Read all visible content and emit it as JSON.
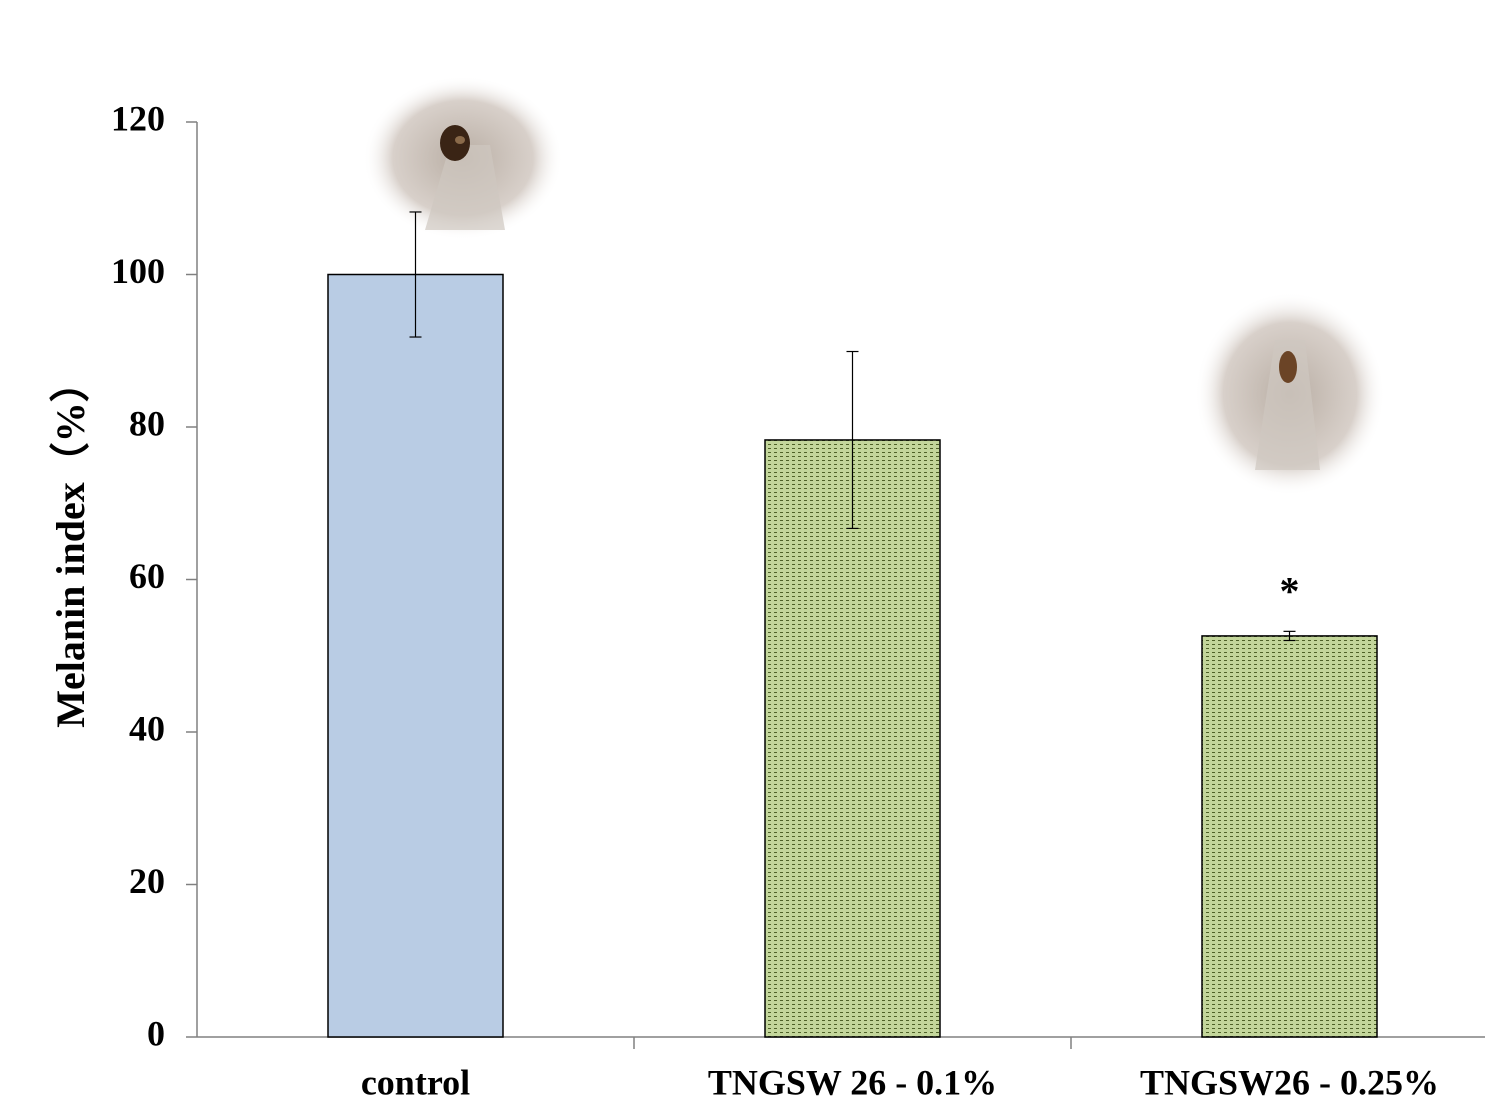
{
  "chart_data": {
    "type": "bar",
    "y_label": "Melanin index（%）",
    "categories": [
      "control",
      "TNGSW 26 - 0.1%",
      "TNGSW26 - 0.25%"
    ],
    "values": [
      100,
      78.3,
      52.6
    ],
    "errors": [
      8.2,
      11.6,
      0.6
    ],
    "colors": [
      "#b9cce4",
      "#c3d69b",
      "#c3d69b"
    ],
    "patterned": [
      false,
      true,
      true
    ],
    "annotations": [
      {
        "category": "TNGSW26 - 0.25%",
        "text": "*"
      }
    ],
    "ylim": [
      0,
      120
    ],
    "yticks": [
      0,
      20,
      40,
      60,
      80,
      100,
      120
    ],
    "grid": false
  }
}
